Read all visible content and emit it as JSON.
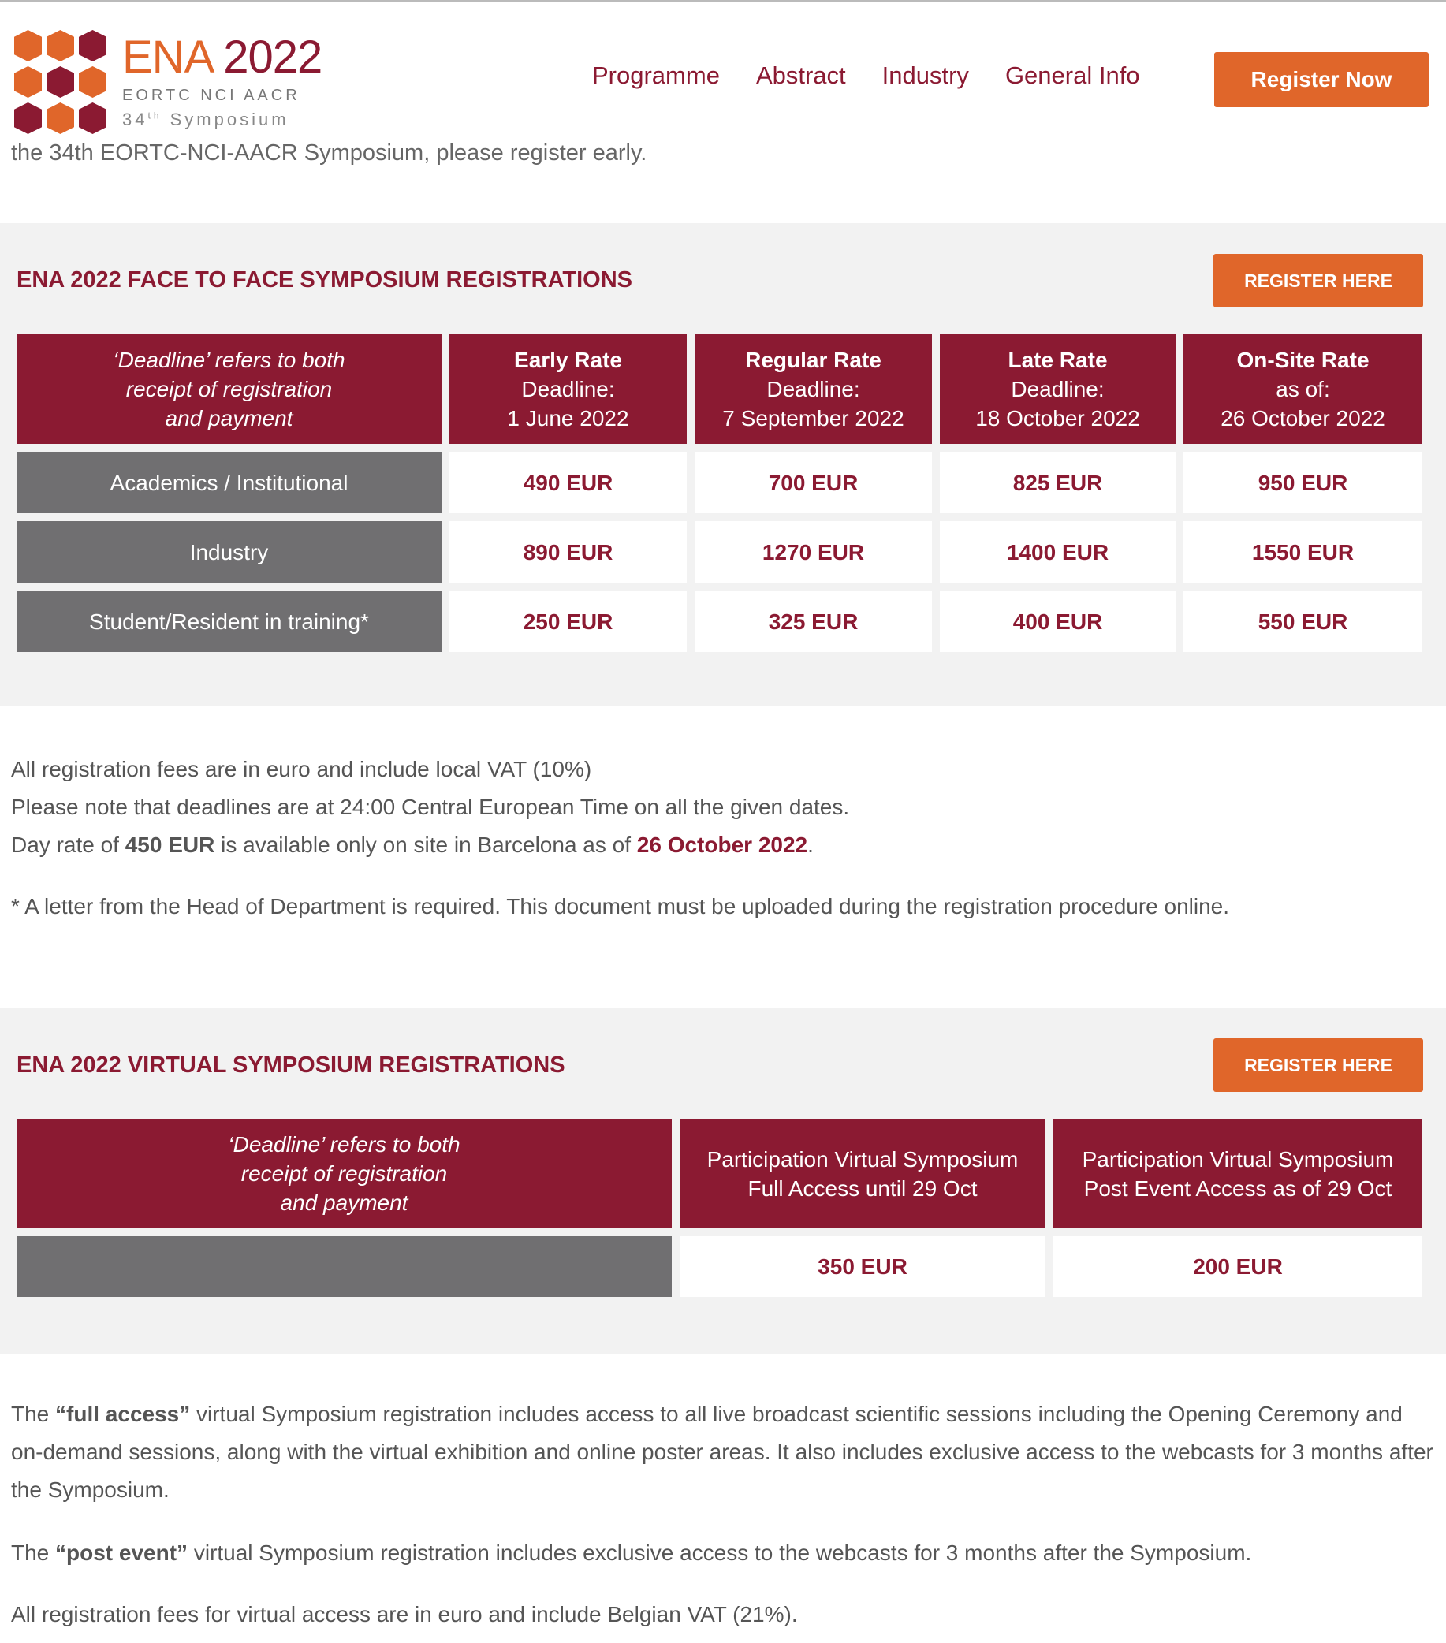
{
  "header": {
    "logo": {
      "title_part1": "ENA",
      "title_part2": "2022",
      "line2": "EORTC NCI AACR",
      "line3_num": "34",
      "line3_sup": "th",
      "line3_word": "Symposium",
      "hex_colors": [
        "#e0662a",
        "#e0662a",
        "#8b1a32",
        "#e0662a",
        "#8b1a32",
        "#e0662a",
        "#8b1a32",
        "#e0662a",
        "#8b1a32"
      ]
    },
    "nav": [
      "Programme",
      "Abstract",
      "Industry",
      "General Info"
    ],
    "register_now": "Register Now"
  },
  "intro_clipped": "the 34th EORTC-NCI-AACR Symposium, please register early.",
  "colors": {
    "brand_red": "#8b1a32",
    "accent_orange": "#e0662a",
    "row_label_gray": "#706f71",
    "section_bg": "#f2f2f2"
  },
  "face_to_face": {
    "title": "ENA 2022 FACE TO FACE SYMPOSIUM REGISTRATIONS",
    "register_label": "REGISTER HERE",
    "deadline_note": [
      "‘Deadline’ refers to both",
      "receipt of registration",
      "and payment"
    ],
    "columns": [
      {
        "name": "Early Rate",
        "l2": "Deadline:",
        "l3": "1 June 2022"
      },
      {
        "name": "Regular Rate",
        "l2": "Deadline:",
        "l3": "7 September 2022"
      },
      {
        "name": "Late Rate",
        "l2": "Deadline:",
        "l3": "18 October 2022"
      },
      {
        "name": "On-Site Rate",
        "l2": "as of:",
        "l3": "26 October 2022"
      }
    ],
    "rows": [
      {
        "label": "Academics / Institutional",
        "values": [
          "490 EUR",
          "700 EUR",
          "825 EUR",
          "950 EUR"
        ]
      },
      {
        "label": "Industry",
        "values": [
          "890 EUR",
          "1270 EUR",
          "1400 EUR",
          "1550 EUR"
        ]
      },
      {
        "label": "Student/Resident in training*",
        "values": [
          "250 EUR",
          "325 EUR",
          "400 EUR",
          "550 EUR"
        ]
      }
    ]
  },
  "notes": {
    "n1": "All registration fees are in euro and include local VAT (10%)",
    "n2": "Please note that deadlines are at 24:00 Central European Time on all the given dates.",
    "n3a": "Day rate of ",
    "n3b": "450 EUR",
    "n3c": " is available only on site in Barcelona as of ",
    "n3d": "26 October 2022",
    "n3e": ".",
    "footnote": "* A letter from the Head of Department is required. This document must be uploaded during the registration procedure online."
  },
  "virtual": {
    "title": "ENA 2022 VIRTUAL SYMPOSIUM REGISTRATIONS",
    "register_label": "REGISTER HERE",
    "deadline_note": [
      "‘Deadline’ refers to both",
      "receipt of registration",
      "and payment"
    ],
    "columns": [
      {
        "l1": "Participation Virtual Symposium",
        "l2": "Full Access until 29 Oct"
      },
      {
        "l1": "Participation Virtual Symposium",
        "l2": "Post Event Access as of 29 Oct"
      }
    ],
    "values": [
      "350 EUR",
      "200 EUR"
    ]
  },
  "virtual_notes": {
    "p1a": "The ",
    "p1b": "“full access”",
    "p1c": " virtual Symposium registration includes access to all live broadcast scientific sessions including the Opening Ceremony and on-demand sessions, along with the virtual exhibition and online poster areas. It also includes exclusive access to the webcasts for 3 months after the Symposium.",
    "p2a": "The ",
    "p2b": "“post event”",
    "p2c": " virtual Symposium registration includes exclusive access to the webcasts for 3 months after the Symposium.",
    "p3": "All registration fees for virtual access are in euro and include Belgian VAT (21%)."
  }
}
